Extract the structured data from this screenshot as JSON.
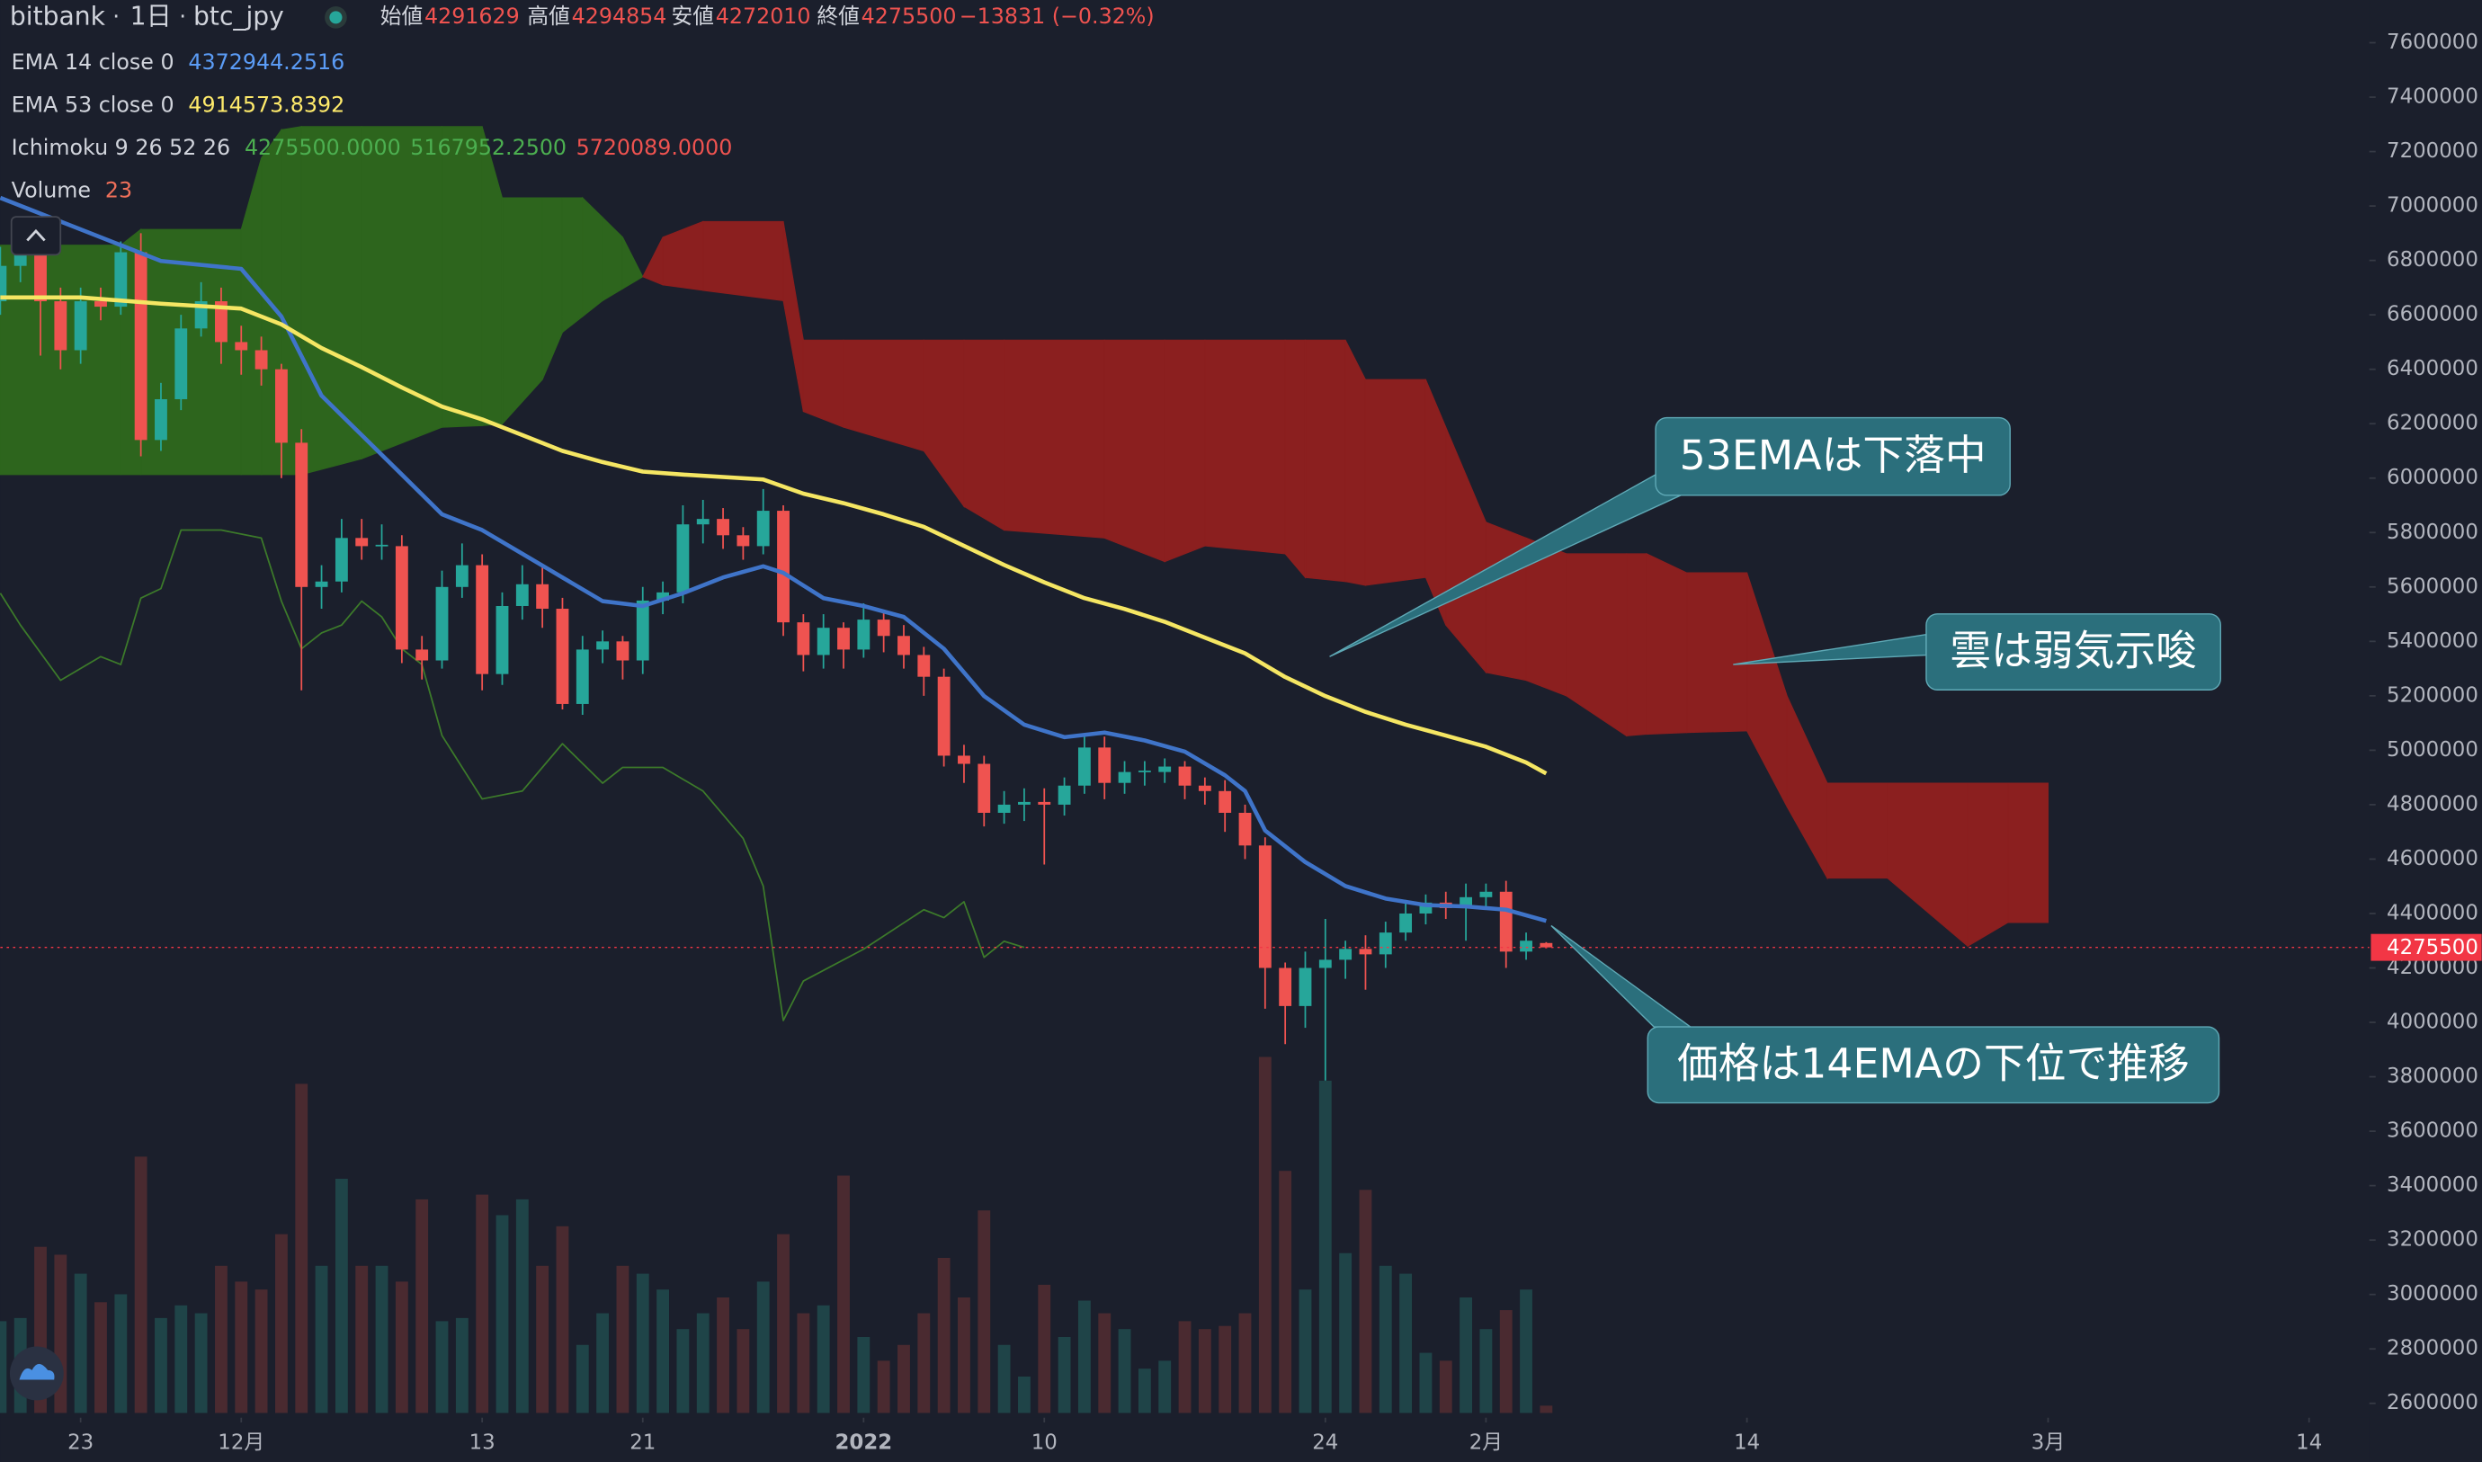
{
  "header": {
    "exchange": "bitbank",
    "interval": "1日",
    "symbol": "btc_jpy",
    "fields": [
      {
        "label": "始値",
        "value": 4291629
      },
      {
        "label": "高値",
        "value": 4294854
      },
      {
        "label": "安値",
        "value": 4272010
      },
      {
        "label": "終値",
        "value": 4275500
      }
    ],
    "change": "−13831 (−0.32%)"
  },
  "legend": [
    {
      "label": "EMA 14 close 0",
      "values": [
        4372944.2516
      ],
      "colors": [
        "#5b9cf6"
      ]
    },
    {
      "label": "EMA 53 close 0",
      "values": [
        4914573.8392
      ],
      "colors": [
        "#ffeb6b"
      ]
    },
    {
      "label": "Ichimoku 9 26 52 26",
      "values": [
        {
          "value": 4275500,
          "label": "4275500.0000"
        },
        {
          "value": 5167952.25,
          "label": "5167952.2500"
        },
        {
          "value": 5720089,
          "label": "5720089.0000"
        }
      ],
      "colors": [
        "#4caf50",
        "#4caf50",
        "#ef5350"
      ]
    },
    {
      "label": "Volume",
      "values": [
        23
      ],
      "colors": [
        "#f0705a"
      ]
    }
  ],
  "chart_data": {
    "type": "candlestick",
    "xlim": [
      0,
      118
    ],
    "xticks": [
      {
        "value": 4,
        "label": "23"
      },
      {
        "value": 12,
        "label": "12月"
      },
      {
        "value": 24,
        "label": "13"
      },
      {
        "value": 32,
        "label": "21"
      },
      {
        "value": 43,
        "label": "2022"
      },
      {
        "value": 52,
        "label": "10"
      },
      {
        "value": 66,
        "label": "24"
      },
      {
        "value": 74,
        "label": "2月"
      },
      {
        "value": 87,
        "label": "14"
      },
      {
        "value": 102,
        "label": "3月"
      },
      {
        "value": 115,
        "label": "14"
      }
    ],
    "ylim": [
      2553000,
      7757000
    ],
    "yticks": [
      2600000,
      2800000,
      3000000,
      3200000,
      3400000,
      3600000,
      3800000,
      4000000,
      4200000,
      4400000,
      4600000,
      4800000,
      5000000,
      5200000,
      5400000,
      5600000,
      5800000,
      6000000,
      6200000,
      6400000,
      6600000,
      6800000,
      7000000,
      7200000,
      7400000,
      7600000
    ],
    "grid": false,
    "up_color": "#26a69a",
    "down_color": "#ef5350",
    "volume_up_color": "#1f4448",
    "volume_down_color": "#4a2a30",
    "candles": {
      "open": [
        6650000,
        6780000,
        6830000,
        6650000,
        6470000,
        6650000,
        6630000,
        6830000,
        6140000,
        6290000,
        6550000,
        6650000,
        6500000,
        6470000,
        6400000,
        6130000,
        5600000,
        5620000,
        5780000,
        5750000,
        5750000,
        5370000,
        5330000,
        5600000,
        5680000,
        5280000,
        5530000,
        5610000,
        5520000,
        5170000,
        5370000,
        5400000,
        5330000,
        5550000,
        5580000,
        5830000,
        5850000,
        5790000,
        5750000,
        5880000,
        5470000,
        5350000,
        5450000,
        5370000,
        5480000,
        5420000,
        5350000,
        5270000,
        4980000,
        4950000,
        4770000,
        4800000,
        4810000,
        4800000,
        4870000,
        5010000,
        4880000,
        4920000,
        4920000,
        4940000,
        4870000,
        4850000,
        4770000,
        4650000,
        4200000,
        4060000,
        4200000,
        4230000,
        4270000,
        4250000,
        4330000,
        4400000,
        4440000,
        4420000,
        4460000,
        4480000,
        4260000,
        4291629
      ],
      "high": [
        6850000,
        6900000,
        6880000,
        6700000,
        6700000,
        6700000,
        6870000,
        6900000,
        6350000,
        6600000,
        6720000,
        6700000,
        6560000,
        6520000,
        6420000,
        6180000,
        5680000,
        5850000,
        5850000,
        5830000,
        5790000,
        5420000,
        5660000,
        5760000,
        5720000,
        5580000,
        5680000,
        5680000,
        5560000,
        5420000,
        5440000,
        5420000,
        5600000,
        5620000,
        5900000,
        5920000,
        5890000,
        5820000,
        5960000,
        5900000,
        5500000,
        5500000,
        5470000,
        5540000,
        5510000,
        5460000,
        5380000,
        5300000,
        5020000,
        4980000,
        4850000,
        4860000,
        4860000,
        4900000,
        5060000,
        5050000,
        4960000,
        4960000,
        4970000,
        4960000,
        4900000,
        4890000,
        4800000,
        4680000,
        4220000,
        4260000,
        4380000,
        4300000,
        4320000,
        4370000,
        4450000,
        4470000,
        4480000,
        4510000,
        4510000,
        4520000,
        4330000,
        4294854
      ],
      "low": [
        6600000,
        6720000,
        6450000,
        6400000,
        6420000,
        6580000,
        6600000,
        6080000,
        6100000,
        6250000,
        6520000,
        6420000,
        6380000,
        6340000,
        6000000,
        5220000,
        5520000,
        5580000,
        5700000,
        5700000,
        5320000,
        5260000,
        5300000,
        5560000,
        5220000,
        5240000,
        5480000,
        5450000,
        5150000,
        5130000,
        5320000,
        5260000,
        5280000,
        5500000,
        5540000,
        5760000,
        5740000,
        5700000,
        5720000,
        5420000,
        5290000,
        5300000,
        5300000,
        5340000,
        5360000,
        5300000,
        5200000,
        4940000,
        4880000,
        4720000,
        4730000,
        4740000,
        4580000,
        4760000,
        4840000,
        4820000,
        4840000,
        4870000,
        4880000,
        4820000,
        4800000,
        4700000,
        4600000,
        4050000,
        3920000,
        3980000,
        3786000,
        4160000,
        4120000,
        4200000,
        4300000,
        4360000,
        4380000,
        4300000,
        4420000,
        4200000,
        4230000,
        4272010
      ],
      "close": [
        6780000,
        6830000,
        6650000,
        6470000,
        6650000,
        6630000,
        6830000,
        6140000,
        6290000,
        6550000,
        6650000,
        6500000,
        6470000,
        6400000,
        6130000,
        5600000,
        5620000,
        5780000,
        5750000,
        5755000,
        5370000,
        5330000,
        5600000,
        5680000,
        5280000,
        5530000,
        5610000,
        5520000,
        5170000,
        5370000,
        5400000,
        5330000,
        5550000,
        5580000,
        5830000,
        5850000,
        5790000,
        5750000,
        5880000,
        5470000,
        5350000,
        5450000,
        5370000,
        5480000,
        5420000,
        5350000,
        5270000,
        4980000,
        4950000,
        4770000,
        4800000,
        4810000,
        4800000,
        4870000,
        5010000,
        4880000,
        4920000,
        4925000,
        4940000,
        4870000,
        4850000,
        4770000,
        4650000,
        4200000,
        4060000,
        4200000,
        4230000,
        4270000,
        4250000,
        4330000,
        4400000,
        4440000,
        4420000,
        4460000,
        4480000,
        4260000,
        4300000,
        4275500
      ]
    },
    "volume": [
      290,
      300,
      525,
      500,
      440,
      350,
      375,
      810,
      300,
      340,
      315,
      465,
      415,
      390,
      565,
      1040,
      465,
      740,
      465,
      465,
      415,
      675,
      290,
      300,
      690,
      625,
      675,
      465,
      590,
      215,
      315,
      465,
      440,
      390,
      265,
      315,
      365,
      265,
      415,
      565,
      315,
      340,
      750,
      240,
      165,
      215,
      315,
      490,
      365,
      640,
      215,
      115,
      405,
      240,
      355,
      315,
      265,
      140,
      165,
      290,
      265,
      275,
      315,
      1125,
      765,
      390,
      1050,
      505,
      705,
      465,
      440,
      190,
      165,
      365,
      265,
      325,
      390,
      23
    ],
    "series": [
      {
        "name": "EMA 14",
        "color": "#3f74c9",
        "x": [
          0,
          4,
          6,
          8,
          12,
          14,
          16,
          18,
          20,
          22,
          24,
          26,
          28,
          30,
          32,
          34,
          36,
          38,
          39,
          41,
          43,
          45,
          47,
          49,
          51,
          53,
          55,
          57,
          59,
          61,
          62,
          63,
          65,
          67,
          69,
          71,
          73,
          75,
          77
        ],
        "values": [
          7030000,
          6914000,
          6856000,
          6798000,
          6769000,
          6594000,
          6303000,
          6158000,
          6013000,
          5867000,
          5809000,
          5722000,
          5635000,
          5548000,
          5530000,
          5577000,
          5635000,
          5676000,
          5652000,
          5559000,
          5530000,
          5490000,
          5373000,
          5199000,
          5094000,
          5048000,
          5065000,
          5036000,
          4995000,
          4908000,
          4850000,
          4705000,
          4589000,
          4501000,
          4455000,
          4431000,
          4426000,
          4414000,
          4372944.2516
        ]
      },
      {
        "name": "EMA 53",
        "color": "#f5e663",
        "x": [
          0,
          4,
          8,
          12,
          14,
          16,
          18,
          20,
          22,
          24,
          26,
          28,
          30,
          32,
          34,
          38,
          40,
          42,
          44,
          46,
          48,
          50,
          52,
          54,
          56,
          58,
          60,
          62,
          64,
          66,
          68,
          70,
          72,
          74,
          76,
          77
        ],
        "values": [
          6664000,
          6664000,
          6641000,
          6623000,
          6565000,
          6478000,
          6408000,
          6333000,
          6263000,
          6216000,
          6158000,
          6100000,
          6059000,
          6024000,
          6013000,
          5995000,
          5943000,
          5908000,
          5867000,
          5821000,
          5751000,
          5681000,
          5617000,
          5559000,
          5519000,
          5472000,
          5414000,
          5356000,
          5269000,
          5199000,
          5141000,
          5094000,
          5054000,
          5013000,
          4955000,
          4914573.8392
        ]
      },
      {
        "name": "Lagging",
        "color": "#3c7a2a",
        "x": [
          0,
          1,
          3,
          5,
          6,
          7,
          8,
          9,
          11,
          13,
          14,
          15,
          16,
          17,
          18,
          19,
          20,
          21,
          22,
          24,
          26,
          28,
          30,
          31,
          33,
          35,
          37,
          38,
          39,
          40,
          43,
          46,
          47,
          48,
          49,
          50,
          51
        ],
        "values": [
          5577000,
          5460000,
          5257000,
          5344000,
          5315000,
          5559000,
          5594000,
          5809000,
          5809000,
          5780000,
          5548000,
          5373000,
          5431000,
          5460000,
          5548000,
          5490000,
          5373000,
          5315000,
          5054000,
          4821000,
          4850000,
          5024000,
          4879000,
          4937000,
          4937000,
          4850000,
          4676000,
          4501000,
          4007000,
          4152000,
          4269000,
          4414000,
          4385000,
          4443000,
          4239000,
          4298000,
          4275500
        ]
      }
    ],
    "cloud": {
      "up_color": "#2d651d",
      "down_color": "#8b1f1f",
      "x": [
        0,
        6,
        7,
        12,
        13,
        14,
        15,
        18,
        22,
        24,
        25,
        27,
        28,
        29,
        30,
        31,
        32,
        33,
        35,
        39,
        40,
        42,
        46,
        48,
        50,
        55,
        58,
        60,
        64,
        65,
        67,
        68,
        71,
        72,
        74,
        76,
        78,
        81,
        82,
        84,
        87,
        89,
        91,
        94,
        98,
        100,
        102
      ],
      "span_a": [
        6856000,
        6856000,
        6914000,
        6914000,
        7176000,
        7280000,
        7292000,
        7292000,
        7292000,
        7292000,
        7030000,
        7030000,
        7030000,
        7030000,
        6958000,
        6885000,
        6740000,
        6710000,
        6690000,
        6652000,
        6245000,
        6187000,
        6100000,
        5896000,
        5809000,
        5780000,
        5693000,
        5751000,
        5722000,
        5635000,
        5620000,
        5606000,
        5635000,
        5460000,
        5286000,
        5257000,
        5200000,
        5053000,
        5059000,
        5065000,
        5071000,
        4792000,
        4530000,
        4530000,
        4280000,
        4367000,
        4367000
      ],
      "span_b": [
        6013000,
        6013000,
        6013000,
        6013000,
        6013000,
        6013000,
        6013000,
        6071000,
        6187000,
        6193000,
        6199000,
        6362000,
        6536000,
        6594000,
        6652000,
        6696000,
        6740000,
        6885000,
        6943000,
        6943000,
        6507000,
        6507000,
        6507000,
        6507000,
        6507000,
        6507000,
        6507000,
        6507000,
        6507000,
        6507000,
        6507000,
        6362000,
        6362000,
        6187000,
        5838000,
        5780000,
        5722000,
        5722000,
        5722000,
        5652000,
        5652000,
        5199000,
        4879000,
        4879000,
        4879000,
        4879000,
        4879000
      ]
    },
    "last_price": 4275500,
    "last_price_color": "#f23645",
    "annotations": [
      "53EMAは下落中",
      "雲は弱気示唆",
      "価格は14EMAの下位で推移"
    ]
  }
}
